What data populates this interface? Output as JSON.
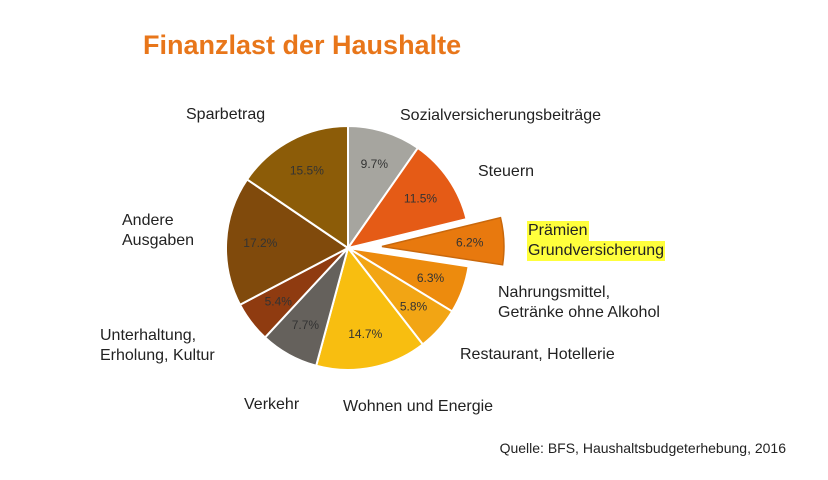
{
  "chart_data": {
    "type": "pie",
    "title": "Finanzlast der Haushalte",
    "source": "Quelle: BFS, Haushaltsbudgeterhebung, 2016",
    "slices": [
      {
        "label_lines": [
          "Sozialversicherungsbeiträge"
        ],
        "value": 9.7,
        "value_label": "9.7%",
        "color": "#a6a59f",
        "exploded": false
      },
      {
        "label_lines": [
          "Steuern"
        ],
        "value": 11.5,
        "value_label": "11.5%",
        "color": "#e55b16",
        "exploded": false
      },
      {
        "label_lines": [
          "Prämien",
          "Grundversicherung"
        ],
        "value": 6.2,
        "value_label": "6.2%",
        "color": "#e8790e",
        "exploded": true,
        "highlight": true
      },
      {
        "label_lines": [
          "Nahrungsmittel,",
          "Getränke ohne Alkohol"
        ],
        "value": 6.3,
        "value_label": "6.3%",
        "color": "#ed8b0d",
        "exploded": false
      },
      {
        "label_lines": [
          "Restaurant, Hotellerie"
        ],
        "value": 5.8,
        "value_label": "5.8%",
        "color": "#f2a514",
        "exploded": false
      },
      {
        "label_lines": [
          "Wohnen und Energie"
        ],
        "value": 14.7,
        "value_label": "14.7%",
        "color": "#f8be10",
        "exploded": false
      },
      {
        "label_lines": [
          "Verkehr"
        ],
        "value": 7.7,
        "value_label": "7.7%",
        "color": "#65615c",
        "exploded": false
      },
      {
        "label_lines": [
          "Unterhaltung,",
          "Erholung, Kultur"
        ],
        "value": 5.4,
        "value_label": "5.4%",
        "color": "#8f3b10",
        "exploded": false
      },
      {
        "label_lines": [
          "Andere",
          "Ausgaben"
        ],
        "value": 17.2,
        "value_label": "17.2%",
        "color": "#804a0c",
        "exploded": false
      },
      {
        "label_lines": [
          "Sparbetrag"
        ],
        "value": 15.5,
        "value_label": "15.5%",
        "color": "#8c5c08",
        "exploded": false
      }
    ]
  }
}
